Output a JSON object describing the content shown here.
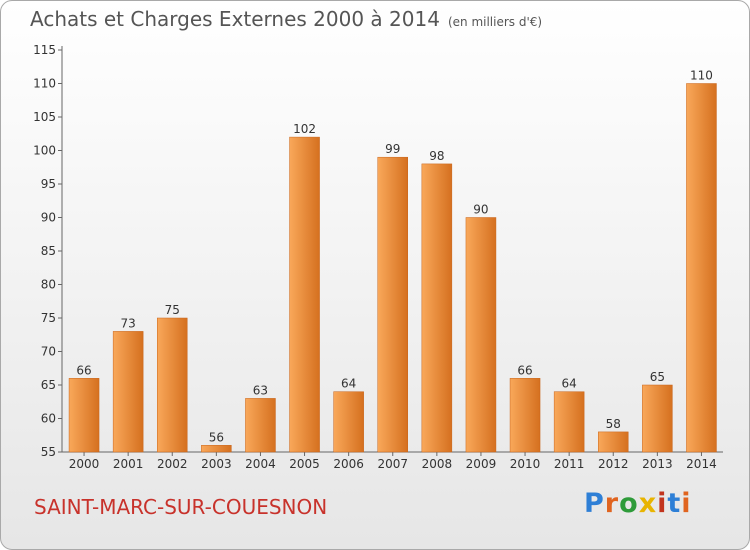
{
  "header": {
    "title": "Achats et Charges Externes 2000 à 2014",
    "unit": "(en milliers d'€)"
  },
  "footer": {
    "town": "SAINT-MARC-SUR-COUESNON",
    "logo_text": "Proxiti",
    "logo_colors": [
      "#2e7fd6",
      "#e0641f",
      "#2e9b3a",
      "#e8b400",
      "#c2341e",
      "#2e7fd6",
      "#e0641f"
    ]
  },
  "chart_data": {
    "type": "bar",
    "title": "Achats et Charges Externes 2000 à 2014",
    "subtitle": "(en milliers d'€)",
    "categories": [
      "2000",
      "2001",
      "2002",
      "2003",
      "2004",
      "2005",
      "2006",
      "2007",
      "2008",
      "2009",
      "2010",
      "2011",
      "2012",
      "2013",
      "2014"
    ],
    "values": [
      66,
      73,
      75,
      56,
      63,
      102,
      64,
      99,
      98,
      90,
      66,
      64,
      58,
      65,
      110
    ],
    "ylim": [
      55,
      115
    ],
    "yticks": [
      55,
      60,
      65,
      70,
      75,
      80,
      85,
      90,
      95,
      100,
      105,
      110,
      115
    ],
    "grid": false,
    "data_labels": true,
    "bar_color_light": "#f9a85a",
    "bar_color_dark": "#d5701f"
  }
}
